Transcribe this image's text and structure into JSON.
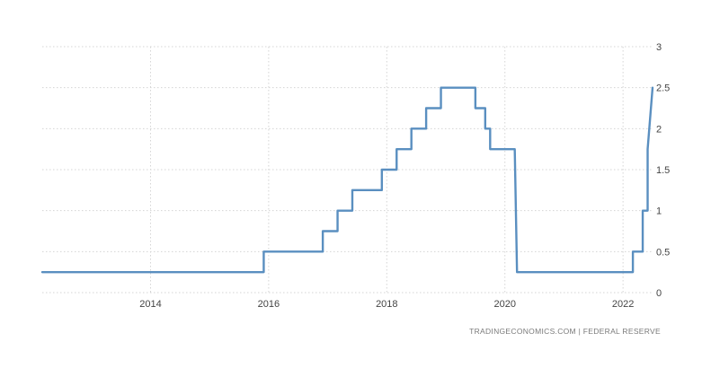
{
  "source_credit": "TRADINGECONOMICS.COM  |  FEDERAL RESERVE",
  "chart_data": {
    "type": "line",
    "title": "",
    "xlabel": "",
    "ylabel": "",
    "xlim": [
      "2012-03",
      "2022-07"
    ],
    "ylim": [
      0,
      3
    ],
    "grid": true,
    "y_axis_side": "right",
    "x_ticks": [
      "2014",
      "2016",
      "2018",
      "2020",
      "2022"
    ],
    "y_ticks": [
      "0",
      "0.5",
      "1",
      "1.5",
      "2",
      "2.5",
      "3"
    ],
    "series_color": "#5a8fc0",
    "series": [
      {
        "x": [
          "2012-03",
          "2015-12",
          "2015-12",
          "2016-12",
          "2016-12",
          "2017-03",
          "2017-03",
          "2017-06",
          "2017-06",
          "2017-12",
          "2017-12",
          "2018-03",
          "2018-03",
          "2018-06",
          "2018-06",
          "2018-09",
          "2018-09",
          "2018-12",
          "2018-12",
          "2019-07",
          "2019-07",
          "2019-09",
          "2019-09",
          "2019-10",
          "2019-10",
          "2020-03-01",
          "2020-03-15",
          "2022-03",
          "2022-03",
          "2022-05",
          "2022-05",
          "2022-06",
          "2022-06",
          "2022-07"
        ],
        "values": [
          0.25,
          0.25,
          0.5,
          0.5,
          0.75,
          0.75,
          1.0,
          1.0,
          1.25,
          1.25,
          1.5,
          1.5,
          1.75,
          1.75,
          2.0,
          2.0,
          2.25,
          2.25,
          2.5,
          2.5,
          2.25,
          2.25,
          2.0,
          2.0,
          1.75,
          1.75,
          0.25,
          0.25,
          0.5,
          0.5,
          1.0,
          1.0,
          1.75,
          2.5
        ]
      }
    ]
  }
}
